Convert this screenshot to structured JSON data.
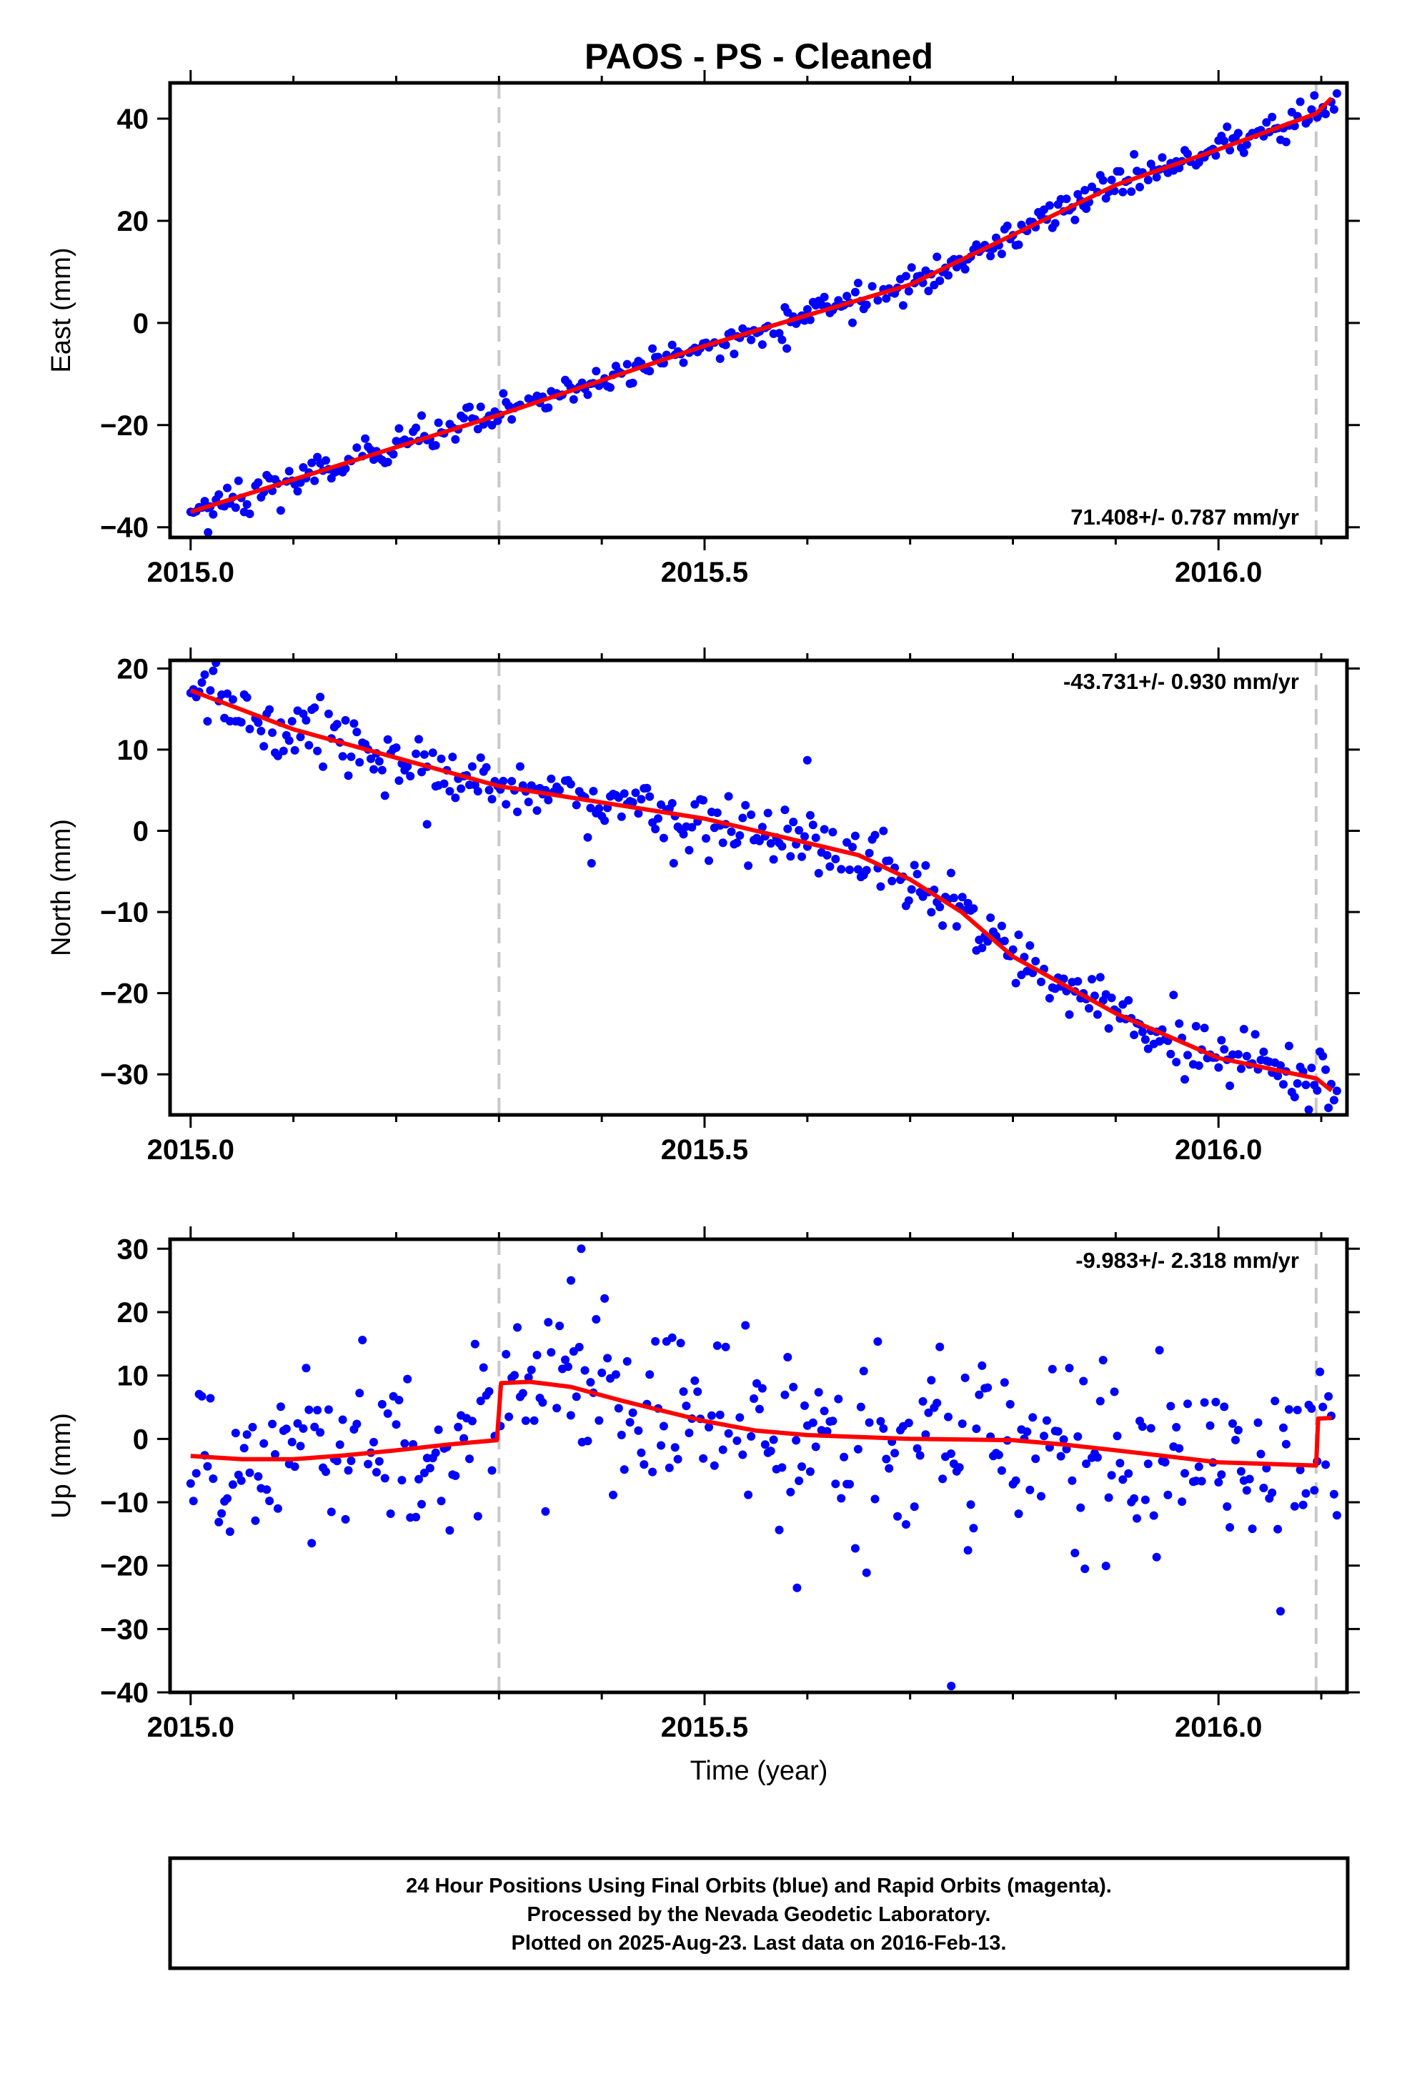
{
  "title": "PAOS  - PS - Cleaned",
  "xlabel": "Time (year)",
  "footer": [
    "24 Hour Positions Using Final Orbits (blue) and Rapid Orbits (magenta).",
    "Processed by the Nevada Geodetic Laboratory.",
    "Plotted on 2025-Aug-23. Last data on 2016-Feb-13."
  ],
  "colors": {
    "points": "#0000ff",
    "fit": "#ff0000",
    "breaks": "#c8c8c8",
    "frame": "#000000"
  },
  "chart_data": [
    {
      "type": "scatter",
      "ylabel": "East (mm)",
      "xlim": [
        2014.98,
        2016.125
      ],
      "ylim": [
        -42,
        47
      ],
      "xticks": [
        2015.0,
        2015.5,
        2016.0
      ],
      "xtick_labels": [
        "2015.0",
        "2015.5",
        "2016.0"
      ],
      "yticks": [
        -40,
        -20,
        0,
        20,
        40
      ],
      "ytick_labels": [
        "−40",
        "−20",
        "0",
        "20",
        "40"
      ],
      "rate_label": "71.408+/- 0.787 mm/yr",
      "rate_position": "bottom-right",
      "breaks": [
        2015.3,
        2016.095
      ],
      "trend": {
        "x": [
          2015.0,
          2015.3,
          2015.5,
          2015.7,
          2015.9,
          2016.0,
          2016.095,
          2016.11
        ],
        "y": [
          -37.0,
          -18.0,
          -4.5,
          7.5,
          27.0,
          34.0,
          41.0,
          44.0
        ]
      },
      "noise_sd": 1.6,
      "outliers": [
        [
          2015.58,
          -5
        ],
        [
          2015.017,
          -41
        ],
        [
          2015.87,
          26
        ]
      ]
    },
    {
      "type": "scatter",
      "ylabel": "North (mm)",
      "xlim": [
        2014.98,
        2016.125
      ],
      "ylim": [
        -35,
        21
      ],
      "xticks": [
        2015.0,
        2015.5,
        2016.0
      ],
      "xtick_labels": [
        "2015.0",
        "2015.5",
        "2016.0"
      ],
      "yticks": [
        -30,
        -20,
        -10,
        0,
        10,
        20
      ],
      "ytick_labels": [
        "−30",
        "−20",
        "−10",
        "0",
        "10",
        "20"
      ],
      "rate_label": "-43.731+/- 0.930 mm/yr",
      "rate_position": "top-right",
      "breaks": [
        2015.3,
        2016.095
      ],
      "trend": {
        "x": [
          2015.0,
          2015.1,
          2015.2,
          2015.3,
          2015.4,
          2015.5,
          2015.6,
          2015.65,
          2015.7,
          2015.75,
          2015.8,
          2015.9,
          2016.0,
          2016.095,
          2016.11
        ],
        "y": [
          17.3,
          12.5,
          9.0,
          5.5,
          3.5,
          1.5,
          -1.5,
          -3.0,
          -6.0,
          -10.0,
          -15.5,
          -22.5,
          -28.0,
          -30.5,
          -32.0
        ]
      },
      "noise_sd": 2.0,
      "outliers": [
        [
          2015.6,
          8.7
        ],
        [
          2015.47,
          -4.0
        ],
        [
          2015.23,
          0.8
        ],
        [
          2015.39,
          -4.0
        ]
      ]
    },
    {
      "type": "scatter",
      "ylabel": "Up (mm)",
      "xlim": [
        2014.98,
        2016.125
      ],
      "ylim": [
        -40,
        31.5
      ],
      "xticks": [
        2015.0,
        2015.5,
        2016.0
      ],
      "xtick_labels": [
        "2015.0",
        "2015.5",
        "2016.0"
      ],
      "yticks": [
        -40,
        -30,
        -20,
        -10,
        0,
        10,
        20,
        30
      ],
      "ytick_labels": [
        "−40",
        "−30",
        "−20",
        "−10",
        "0",
        "10",
        "20",
        "30"
      ],
      "rate_label": "-9.983+/- 2.318 mm/yr",
      "rate_position": "top-right",
      "breaks": [
        2015.3,
        2016.095
      ],
      "trend": {
        "x": [
          2015.0,
          2015.05,
          2015.1,
          2015.15,
          2015.2,
          2015.25,
          2015.298,
          2015.302,
          2015.33,
          2015.37,
          2015.42,
          2015.5,
          2015.55,
          2015.6,
          2015.7,
          2015.8,
          2015.85,
          2015.9,
          2016.0,
          2016.095,
          2016.097,
          2016.11
        ],
        "y": [
          -2.7,
          -3.2,
          -3.2,
          -2.6,
          -1.8,
          -0.9,
          -0.2,
          8.8,
          9.0,
          8.2,
          6.0,
          2.8,
          1.3,
          0.6,
          0.0,
          -0.2,
          -0.9,
          -1.8,
          -3.7,
          -4.2,
          3.2,
          3.3
        ]
      },
      "noise_sd": 7.0,
      "outliers": [
        [
          2015.74,
          -39
        ],
        [
          2015.38,
          30
        ],
        [
          2015.37,
          25
        ],
        [
          2015.59,
          -23.5
        ],
        [
          2015.87,
          -20.5
        ]
      ]
    }
  ]
}
